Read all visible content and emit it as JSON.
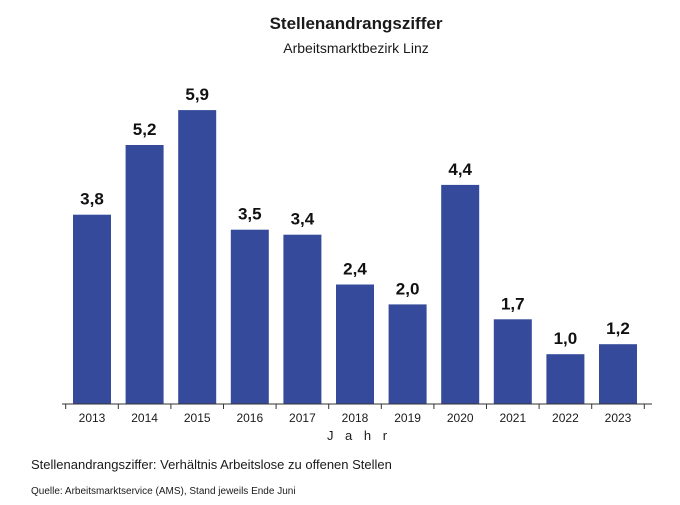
{
  "chart_data": {
    "type": "bar",
    "title": "Stellenandrangsziffer",
    "subtitle": "Arbeitsmarktbezirk Linz",
    "categories": [
      "2013",
      "2014",
      "2015",
      "2016",
      "2017",
      "2018",
      "2019",
      "2020",
      "2021",
      "2022",
      "2023"
    ],
    "values": [
      3.8,
      5.2,
      5.9,
      3.5,
      3.4,
      2.4,
      2.0,
      4.4,
      1.7,
      1.0,
      1.2
    ],
    "value_labels": [
      "3,8",
      "5,2",
      "5,9",
      "3,5",
      "3,4",
      "2,4",
      "2,0",
      "4,4",
      "1,7",
      "1,0",
      "1,2"
    ],
    "xlabel": "J a h r",
    "ylabel": "",
    "ylim": [
      0,
      6.2
    ],
    "grid": false,
    "bar_color": "#354a9a",
    "note": "Stellenandrangsziffer: Verhältnis Arbeitslose zu offenen Stellen",
    "source": "Quelle: Arbeitsmarktservice (AMS), Stand jeweils Ende Juni"
  }
}
